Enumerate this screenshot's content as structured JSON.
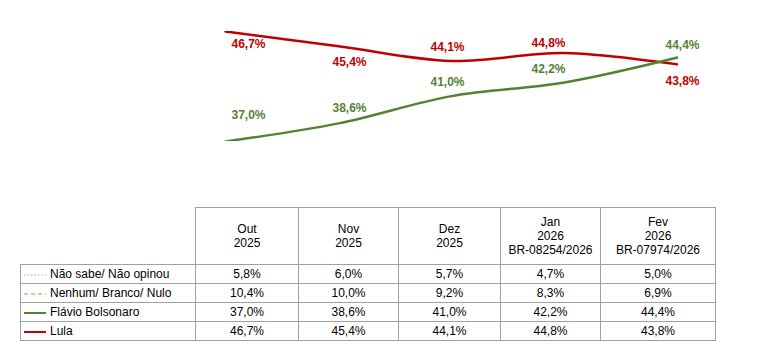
{
  "chart_data": {
    "type": "line",
    "categories": [
      "Out 2025",
      "Nov 2025",
      "Dez 2025",
      "Jan 2026",
      "Fev 2026"
    ],
    "series": [
      {
        "name": "Lula",
        "color": "#c00000",
        "values": [
          46.7,
          45.4,
          44.1,
          44.8,
          43.8
        ],
        "value_labels": [
          "46,7%",
          "45,4%",
          "44,1%",
          "44,8%",
          "43,8%"
        ]
      },
      {
        "name": "Flávio Bolsonaro",
        "color": "#548235",
        "values": [
          37.0,
          38.6,
          41.0,
          42.2,
          44.4
        ],
        "value_labels": [
          "37,0%",
          "38,6%",
          "41,0%",
          "42,2%",
          "44,4%"
        ]
      }
    ],
    "data_labels": true,
    "tick_labels": false,
    "grid": false
  },
  "table": {
    "columns": [
      [
        "Out",
        "2025"
      ],
      [
        "Nov",
        "2025"
      ],
      [
        "Dez",
        "2025"
      ],
      [
        "Jan",
        "2026",
        "BR-08254/2026"
      ],
      [
        "Fev",
        "2026",
        "BR-07974/2026"
      ]
    ],
    "rows": [
      {
        "label": "Não sabe/ Não opinou",
        "color": "#a6a6a6",
        "line_style": "dotted",
        "cells": [
          "5,8%",
          "6,0%",
          "5,7%",
          "4,7%",
          "5,0%"
        ]
      },
      {
        "label": "Nenhum/ Branco/ Nulo",
        "color": "#ed7d31",
        "line_style": "dashed",
        "cells": [
          "10,4%",
          "10,0%",
          "9,2%",
          "8,3%",
          "6,9%"
        ]
      },
      {
        "label": "Flávio Bolsonaro",
        "color": "#548235",
        "line_style": "solid",
        "cells": [
          "37,0%",
          "38,6%",
          "41,0%",
          "42,2%",
          "44,4%"
        ]
      },
      {
        "label": "Lula",
        "color": "#c00000",
        "line_style": "solid",
        "cells": [
          "46,7%",
          "45,4%",
          "44,1%",
          "44,8%",
          "43,8%"
        ]
      }
    ]
  }
}
